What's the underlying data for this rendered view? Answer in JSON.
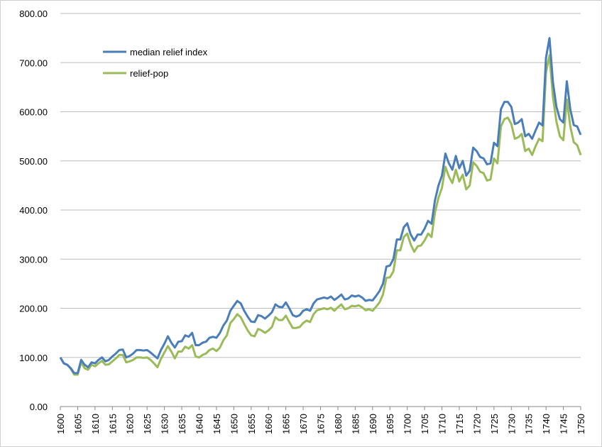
{
  "chart_data": {
    "type": "line",
    "x": [
      1600,
      1601,
      1602,
      1603,
      1604,
      1605,
      1606,
      1607,
      1608,
      1609,
      1610,
      1611,
      1612,
      1613,
      1614,
      1615,
      1616,
      1617,
      1618,
      1619,
      1620,
      1621,
      1622,
      1623,
      1624,
      1625,
      1626,
      1627,
      1628,
      1629,
      1630,
      1631,
      1632,
      1633,
      1634,
      1635,
      1636,
      1637,
      1638,
      1639,
      1640,
      1641,
      1642,
      1643,
      1644,
      1645,
      1646,
      1647,
      1648,
      1649,
      1650,
      1651,
      1652,
      1653,
      1654,
      1655,
      1656,
      1657,
      1658,
      1659,
      1660,
      1661,
      1662,
      1663,
      1664,
      1665,
      1666,
      1667,
      1668,
      1669,
      1670,
      1671,
      1672,
      1673,
      1674,
      1675,
      1676,
      1677,
      1678,
      1679,
      1680,
      1681,
      1682,
      1683,
      1684,
      1685,
      1686,
      1687,
      1688,
      1689,
      1690,
      1691,
      1692,
      1693,
      1694,
      1695,
      1696,
      1697,
      1698,
      1699,
      1700,
      1701,
      1702,
      1703,
      1704,
      1705,
      1706,
      1707,
      1708,
      1709,
      1710,
      1711,
      1712,
      1713,
      1714,
      1715,
      1716,
      1717,
      1718,
      1719,
      1720,
      1721,
      1722,
      1723,
      1724,
      1725,
      1726,
      1727,
      1728,
      1729,
      1730,
      1731,
      1732,
      1733,
      1734,
      1735,
      1736,
      1737,
      1738,
      1739,
      1740,
      1741,
      1742,
      1743,
      1744,
      1745,
      1746,
      1747,
      1748,
      1749,
      1750
    ],
    "series": [
      {
        "name": "median relief index",
        "color": "#4a7ebb",
        "values": [
          100,
          88,
          85,
          78,
          68,
          68,
          95,
          85,
          80,
          90,
          88,
          95,
          100,
          92,
          95,
          102,
          108,
          115,
          116,
          100,
          103,
          108,
          115,
          115,
          114,
          115,
          110,
          104,
          98,
          115,
          128,
          143,
          130,
          120,
          132,
          133,
          145,
          142,
          150,
          125,
          125,
          130,
          132,
          140,
          142,
          140,
          150,
          165,
          175,
          195,
          205,
          215,
          210,
          195,
          183,
          173,
          172,
          186,
          184,
          179,
          185,
          192,
          208,
          203,
          202,
          212,
          200,
          186,
          183,
          186,
          195,
          198,
          195,
          210,
          218,
          220,
          222,
          220,
          224,
          217,
          222,
          228,
          218,
          220,
          226,
          224,
          226,
          222,
          215,
          217,
          216,
          225,
          235,
          250,
          285,
          287,
          300,
          340,
          340,
          365,
          373,
          350,
          338,
          350,
          350,
          362,
          378,
          372,
          420,
          450,
          470,
          515,
          495,
          482,
          510,
          485,
          500,
          470,
          480,
          527,
          520,
          508,
          505,
          493,
          495,
          537,
          530,
          605,
          620,
          620,
          610,
          575,
          578,
          585,
          550,
          555,
          545,
          562,
          578,
          572,
          710,
          750,
          660,
          610,
          585,
          578,
          662,
          605,
          573,
          570,
          553
        ]
      },
      {
        "name": "relief-pop",
        "color": "#9bbb59",
        "values": [
          100,
          88,
          85,
          77,
          65,
          65,
          90,
          78,
          75,
          85,
          82,
          88,
          93,
          85,
          86,
          92,
          98,
          105,
          105,
          90,
          92,
          95,
          100,
          100,
          99,
          100,
          95,
          88,
          80,
          97,
          110,
          123,
          112,
          98,
          112,
          112,
          122,
          118,
          125,
          102,
          100,
          105,
          108,
          115,
          118,
          113,
          120,
          135,
          145,
          170,
          178,
          188,
          182,
          168,
          155,
          145,
          143,
          158,
          155,
          150,
          155,
          162,
          182,
          176,
          176,
          185,
          172,
          160,
          160,
          162,
          170,
          175,
          172,
          188,
          196,
          198,
          200,
          198,
          201,
          195,
          202,
          208,
          198,
          200,
          205,
          204,
          206,
          202,
          196,
          198,
          195,
          203,
          212,
          228,
          262,
          263,
          275,
          318,
          318,
          345,
          352,
          330,
          315,
          326,
          328,
          338,
          352,
          345,
          395,
          425,
          445,
          488,
          468,
          455,
          482,
          458,
          472,
          442,
          450,
          497,
          490,
          478,
          475,
          460,
          462,
          505,
          495,
          570,
          585,
          588,
          575,
          545,
          548,
          555,
          520,
          525,
          512,
          530,
          545,
          540,
          680,
          715,
          630,
          580,
          550,
          542,
          625,
          570,
          538,
          532,
          512
        ]
      }
    ],
    "xlim": [
      1600,
      1750
    ],
    "xticks": [
      1600,
      1605,
      1610,
      1615,
      1620,
      1625,
      1630,
      1635,
      1640,
      1645,
      1650,
      1655,
      1660,
      1665,
      1670,
      1675,
      1680,
      1685,
      1690,
      1695,
      1700,
      1705,
      1710,
      1715,
      1720,
      1725,
      1730,
      1735,
      1740,
      1745,
      1750
    ],
    "ylim": [
      0,
      800
    ],
    "yticks": [
      {
        "value": 0,
        "label": "0.00"
      },
      {
        "value": 100,
        "label": "100.00"
      },
      {
        "value": 200,
        "label": "200.00"
      },
      {
        "value": 300,
        "label": "300.00"
      },
      {
        "value": 400,
        "label": "400.00"
      },
      {
        "value": 500,
        "label": "500.00"
      },
      {
        "value": 600,
        "label": "600.00"
      },
      {
        "value": 700,
        "label": "700.00"
      },
      {
        "value": 800,
        "label": "800.00"
      }
    ],
    "grid": true,
    "legend": "upper-left"
  }
}
